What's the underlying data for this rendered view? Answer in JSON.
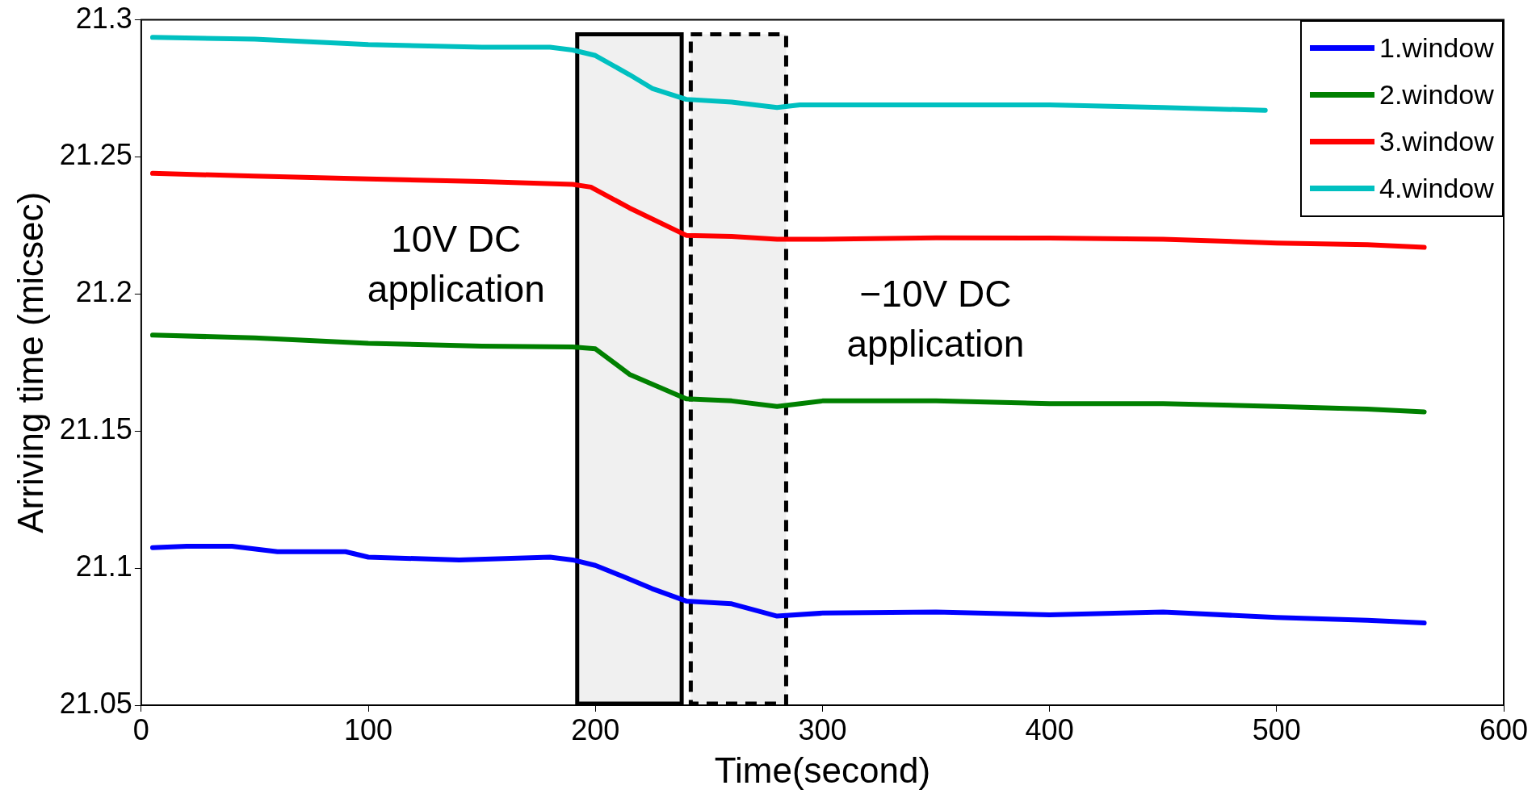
{
  "chart_data": {
    "type": "line",
    "xlabel": "Time(second)",
    "ylabel": "Arriving time (micsec)",
    "xlim": [
      0,
      600
    ],
    "xticks": [
      0,
      100,
      200,
      300,
      400,
      500,
      600
    ],
    "ylim": [
      21.05,
      21.3
    ],
    "yticks": [
      21.05,
      21.1,
      21.15,
      21.2,
      21.25,
      21.3
    ],
    "grid": false,
    "legend": "top right",
    "marker": "none",
    "line_style": "solid",
    "series": [
      {
        "name": "1.window",
        "color": "#0000ff",
        "x": [
          5,
          20,
          40,
          60,
          90,
          100,
          140,
          180,
          190,
          200,
          212,
          225,
          240,
          260,
          280,
          300,
          350,
          400,
          450,
          500,
          540,
          565
        ],
        "values": [
          21.1075,
          21.108,
          21.108,
          21.106,
          21.106,
          21.104,
          21.103,
          21.104,
          21.103,
          21.101,
          21.097,
          21.0925,
          21.088,
          21.087,
          21.0825,
          21.0836,
          21.084,
          21.083,
          21.084,
          21.082,
          21.081,
          21.08
        ]
      },
      {
        "name": "2.window",
        "color": "#008000",
        "x": [
          5,
          50,
          100,
          150,
          190,
          200,
          215,
          240,
          260,
          280,
          300,
          350,
          400,
          450,
          500,
          540,
          565
        ],
        "values": [
          21.185,
          21.184,
          21.182,
          21.181,
          21.1807,
          21.18,
          21.1707,
          21.1618,
          21.161,
          21.159,
          21.161,
          21.161,
          21.16,
          21.16,
          21.159,
          21.158,
          21.157
        ]
      },
      {
        "name": "3.window",
        "color": "#ff0000",
        "x": [
          5,
          50,
          100,
          150,
          190,
          198,
          215,
          240,
          260,
          280,
          300,
          350,
          400,
          450,
          500,
          540,
          565
        ],
        "values": [
          21.244,
          21.243,
          21.242,
          21.241,
          21.24,
          21.239,
          21.2314,
          21.2214,
          21.221,
          21.22,
          21.22,
          21.2205,
          21.2204,
          21.22,
          21.2186,
          21.218,
          21.217
        ]
      },
      {
        "name": "4.window",
        "color": "#00c0c0",
        "x": [
          5,
          50,
          100,
          150,
          180,
          190,
          200,
          215,
          225,
          240,
          260,
          280,
          290,
          350,
          400,
          450,
          495
        ],
        "values": [
          21.2936,
          21.293,
          21.291,
          21.29,
          21.29,
          21.289,
          21.287,
          21.28,
          21.275,
          21.271,
          21.27,
          21.268,
          21.269,
          21.269,
          21.269,
          21.268,
          21.267
        ]
      }
    ],
    "bands": [
      {
        "axis": "x",
        "from": 192,
        "to": 238,
        "label": "10V DC\napplication",
        "color": "#f0f0f0"
      },
      {
        "axis": "x",
        "from": 242,
        "to": 284,
        "label": "−10V DC\napplication",
        "color": "#f0f0f0"
      }
    ]
  }
}
